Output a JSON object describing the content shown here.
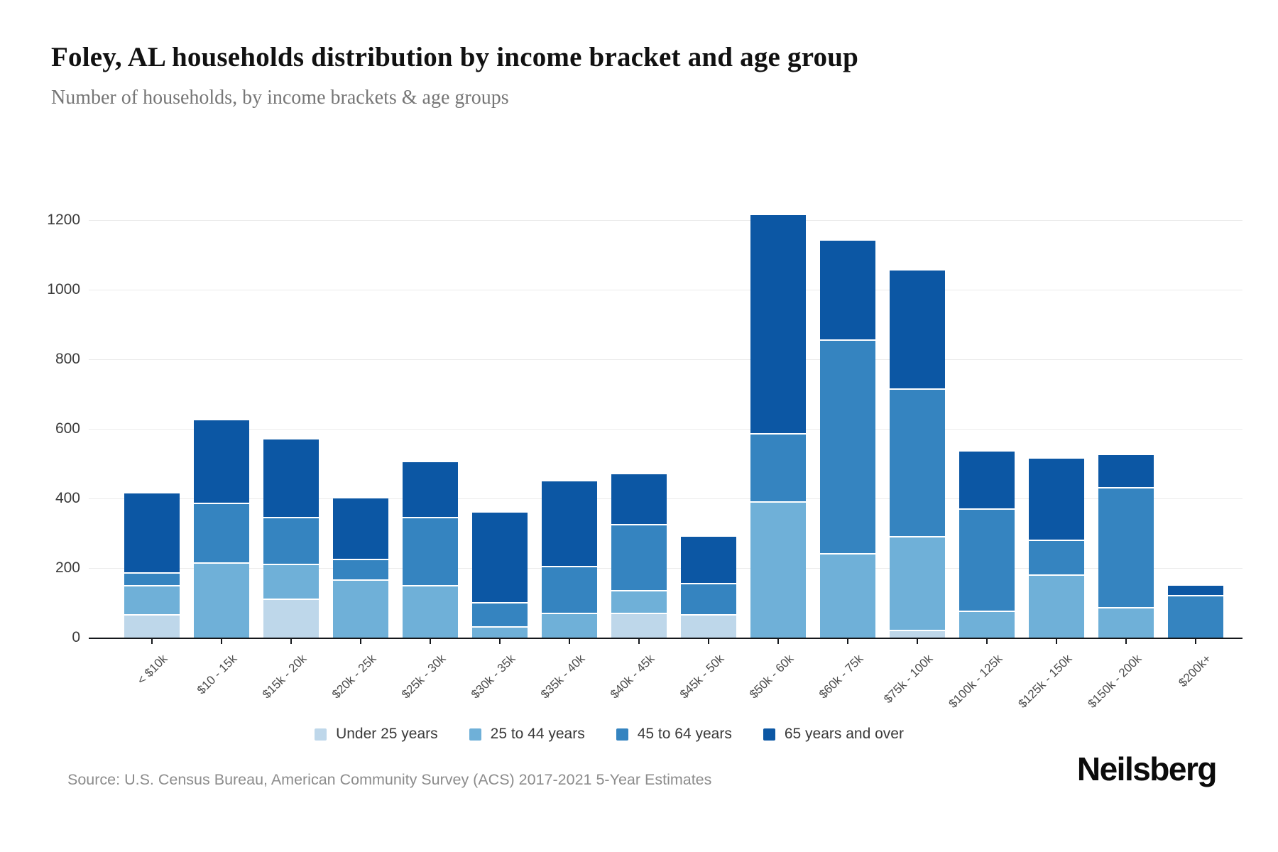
{
  "page": {
    "title": "Foley, AL households distribution by income bracket and age group",
    "subtitle": "Number of households, by income brackets & age groups",
    "source": "Source: U.S. Census Bureau, American Community Survey (ACS) 2017-2021 5-Year Estimates",
    "brand": "Neilsberg"
  },
  "chart_data": {
    "type": "bar",
    "stacked": true,
    "title": "Foley, AL households distribution by income bracket and age group",
    "subtitle": "Number of households, by income brackets & age groups",
    "categories": [
      "< $10k",
      "$10 - 15k",
      "$15k - 20k",
      "$20k - 25k",
      "$25k - 30k",
      "$30k - 35k",
      "$35k - 40k",
      "$40k - 45k",
      "$45k - 50k",
      "$50k - 60k",
      "$60k - 75k",
      "$75k - 100k",
      "$100k - 125k",
      "$125k - 150k",
      "$150k - 200k",
      "$200k+"
    ],
    "series": [
      {
        "name": "Under 25 years",
        "color": "#bed7ea",
        "values": [
          65,
          0,
          110,
          0,
          0,
          0,
          0,
          70,
          65,
          0,
          0,
          20,
          0,
          0,
          0,
          0
        ]
      },
      {
        "name": "25 to 44 years",
        "color": "#6fb0d8",
        "values": [
          85,
          215,
          100,
          165,
          150,
          30,
          70,
          65,
          0,
          390,
          240,
          270,
          75,
          180,
          85,
          0
        ]
      },
      {
        "name": "45 to 64 years",
        "color": "#3584c0",
        "values": [
          35,
          170,
          135,
          60,
          195,
          70,
          135,
          190,
          90,
          195,
          615,
          425,
          295,
          100,
          345,
          120
        ]
      },
      {
        "name": "65 years and over",
        "color": "#0c57a4",
        "values": [
          230,
          240,
          225,
          175,
          160,
          260,
          245,
          145,
          135,
          630,
          285,
          340,
          165,
          235,
          95,
          30
        ]
      }
    ],
    "totals": [
      415,
      625,
      570,
      400,
      505,
      360,
      450,
      470,
      290,
      1215,
      1140,
      1055,
      535,
      515,
      525,
      150
    ],
    "ylim": [
      0,
      1200
    ],
    "yticks": [
      0,
      200,
      400,
      600,
      800,
      1000,
      1200
    ],
    "grid": true,
    "legend_position": "bottom",
    "gridline_color": "#ebebeb",
    "axis_color": "#15181c"
  }
}
